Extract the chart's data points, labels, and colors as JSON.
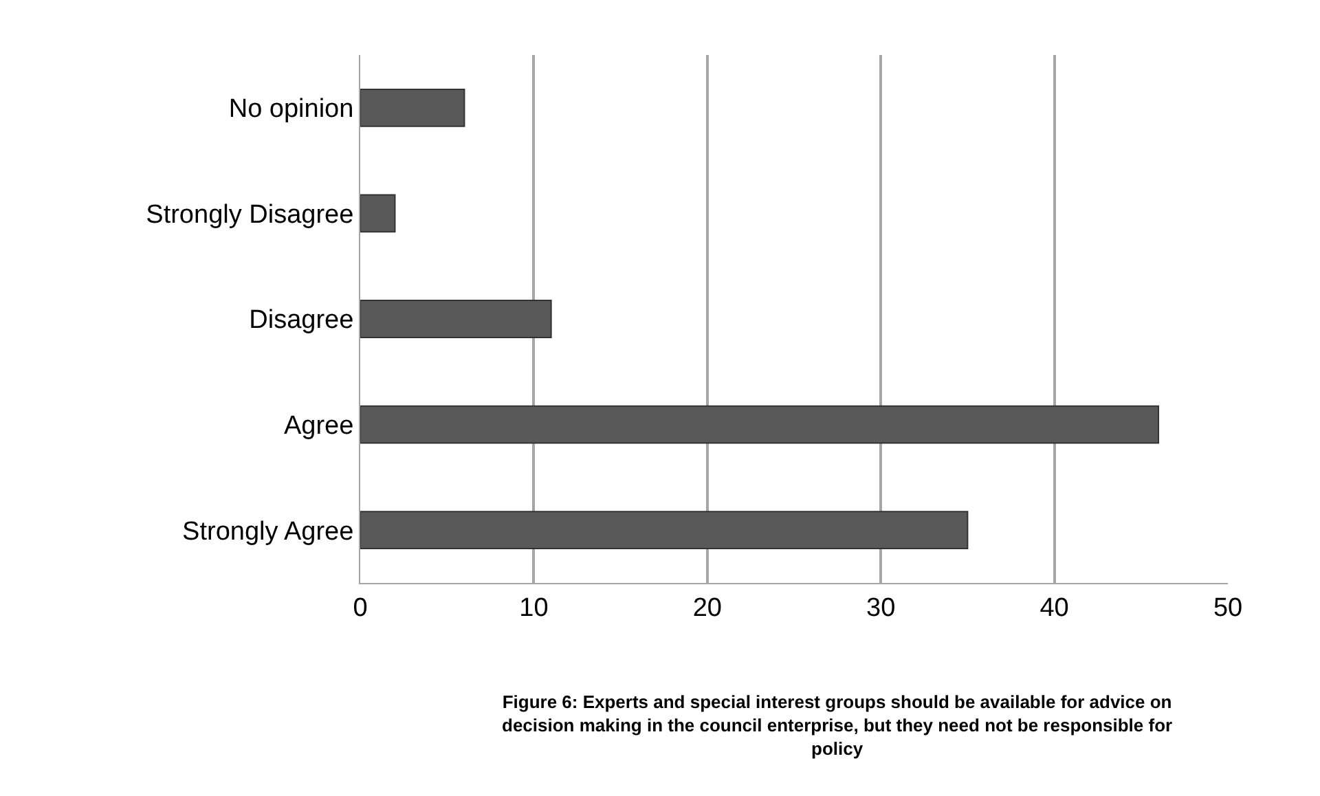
{
  "chart_data": {
    "type": "bar",
    "orientation": "horizontal",
    "categories": [
      "No opinion",
      "Strongly Disagree",
      "Disagree",
      "Agree",
      "Strongly Agree"
    ],
    "values": [
      6,
      2,
      11,
      46,
      35
    ],
    "color": "#595959",
    "xlim": [
      0,
      50
    ],
    "xticks": [
      0,
      10,
      20,
      30,
      40,
      50
    ],
    "grid": "x",
    "legend": false,
    "annotations": [
      "Figure 6: Experts and special interest groups should be available for advice on\ndecision making in the council enterprise, but they need not be responsible for\npolicy"
    ]
  }
}
